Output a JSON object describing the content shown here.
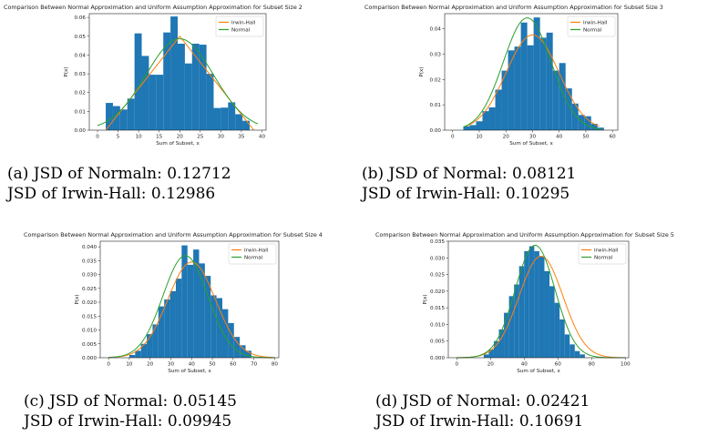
{
  "colors": {
    "bar": "#1f77b4",
    "irwin_hall": "#ff7f0e",
    "normal": "#2ca02c"
  },
  "chart_data": [
    {
      "type": "bar",
      "title": "Comparison Between Normal Approximation and Uniform Assumption Approximation for Subset Size 2",
      "xlabel": "Sum of Subset, x",
      "ylabel": "P(x)",
      "xlim": [
        -2,
        41
      ],
      "ylim": [
        0,
        0.062
      ],
      "xticks": [
        0,
        5,
        10,
        15,
        20,
        25,
        30,
        35,
        40
      ],
      "yticks": [
        0.0,
        0.01,
        0.02,
        0.03,
        0.04,
        0.05,
        0.06
      ],
      "ytick_labels": [
        "0.00",
        "0.01",
        "0.02",
        "0.03",
        "0.04",
        "0.05",
        "0.06"
      ],
      "legend": [
        "Irwin-Hall",
        "Normal"
      ],
      "legend_position": "top-right",
      "bin_start": 2,
      "bin_width": 1.75,
      "values": [
        0.0145,
        0.0128,
        0.011,
        0.0168,
        0.0515,
        0.0395,
        0.0295,
        0.0295,
        0.052,
        0.0605,
        0.046,
        0.0355,
        0.046,
        0.0455,
        0.03,
        0.0118,
        0.012,
        0.0148,
        0.0085,
        0.005
      ],
      "irwin_hall": {
        "shape": "triangle",
        "x": [
          2,
          20,
          38
        ],
        "peak": 0.05
      },
      "normal": {
        "mean": 20,
        "sd": 8.2,
        "x_range": [
          0,
          39
        ]
      },
      "caption_line1": "(a) JSD of Normaln: 0.12712",
      "caption_line2": "JSD of Irwin-Hall: 0.12986"
    },
    {
      "type": "bar",
      "title": "Comparison Between Normal Approximation and Uniform Assumption Approximation for Subset Size 3",
      "xlabel": "Sum of Subset, x",
      "ylabel": "P(x)",
      "xlim": [
        -3,
        62
      ],
      "ylim": [
        0,
        0.046
      ],
      "xticks": [
        0,
        10,
        20,
        30,
        40,
        50,
        60
      ],
      "yticks": [
        0.0,
        0.01,
        0.02,
        0.03,
        0.04
      ],
      "ytick_labels": [
        "0.00",
        "0.01",
        "0.02",
        "0.03",
        "0.04"
      ],
      "legend": [
        "Irwin-Hall",
        "Normal"
      ],
      "legend_position": "top-right",
      "bin_start": 4,
      "bin_width": 2.4,
      "values": [
        0.0015,
        0.002,
        0.0035,
        0.0075,
        0.009,
        0.016,
        0.0235,
        0.0315,
        0.033,
        0.0425,
        0.0335,
        0.0445,
        0.0365,
        0.0385,
        0.0235,
        0.0265,
        0.0165,
        0.0105,
        0.006,
        0.0055,
        0.0025,
        0.001
      ],
      "irwin_hall": {
        "mean": 30,
        "sd": 9.9,
        "peak": 0.0376,
        "x_range": [
          5,
          55
        ]
      },
      "normal": {
        "mean": 28,
        "sd": 9.0,
        "x_range": [
          4,
          56
        ]
      },
      "caption_line1": "(b) JSD of Normal: 0.08121",
      "caption_line2": "JSD of Irwin-Hall: 0.10295"
    },
    {
      "type": "bar",
      "title": "Comparison Between Normal Approximation and Uniform Assumption Approximation for Subset Size 4",
      "xlabel": "Sum of Subset, x",
      "ylabel": "P(x)",
      "xlim": [
        -4,
        82
      ],
      "ylim": [
        0,
        0.042
      ],
      "xticks": [
        0,
        10,
        20,
        30,
        40,
        50,
        60,
        70,
        80
      ],
      "yticks": [
        0.0,
        0.005,
        0.01,
        0.015,
        0.02,
        0.025,
        0.03,
        0.035,
        0.04
      ],
      "ytick_labels": [
        "0.000",
        "0.005",
        "0.010",
        "0.015",
        "0.020",
        "0.025",
        "0.030",
        "0.035",
        "0.040"
      ],
      "legend": [
        "Irwin-Hall",
        "Normal"
      ],
      "legend_position": "top-right",
      "bin_start": 10,
      "bin_width": 2.8,
      "values": [
        0.001,
        0.0025,
        0.005,
        0.0085,
        0.012,
        0.0185,
        0.021,
        0.024,
        0.0285,
        0.0405,
        0.0335,
        0.039,
        0.034,
        0.0295,
        0.0225,
        0.0215,
        0.0175,
        0.0125,
        0.0075,
        0.0045,
        0.0025
      ],
      "irwin_hall": {
        "mean": 40,
        "sd": 11.5,
        "peak": 0.0345,
        "x_range": [
          0,
          80
        ]
      },
      "normal": {
        "mean": 37,
        "sd": 10.8,
        "peak": 0.0368,
        "x_range": [
          0,
          80
        ]
      },
      "caption_line1": "(c) JSD of Normal: 0.05145",
      "caption_line2": "JSD of Irwin-Hall: 0.09945"
    },
    {
      "type": "bar",
      "title": "Comparison Between Normal Approximation and Uniform Assumption Approximation for Subset Size 5",
      "xlabel": "Sum of Subset, x",
      "ylabel": "P(x)",
      "xlim": [
        -5,
        102
      ],
      "ylim": [
        0,
        0.035
      ],
      "xticks": [
        0,
        20,
        40,
        60,
        80,
        100
      ],
      "yticks": [
        0.0,
        0.005,
        0.01,
        0.015,
        0.02,
        0.025,
        0.03,
        0.035
      ],
      "ytick_labels": [
        "0.000",
        "0.005",
        "0.010",
        "0.015",
        "0.020",
        "0.025",
        "0.030",
        "0.035"
      ],
      "legend": [
        "Irwin-Hall",
        "Normal"
      ],
      "legend_position": "top-right",
      "bin_start": 16,
      "bin_width": 3.0,
      "values": [
        0.001,
        0.0025,
        0.005,
        0.0085,
        0.0135,
        0.0185,
        0.022,
        0.0275,
        0.032,
        0.0335,
        0.032,
        0.0305,
        0.026,
        0.0215,
        0.0165,
        0.0115,
        0.007,
        0.004,
        0.002,
        0.001
      ],
      "irwin_hall": {
        "mean": 50,
        "sd": 13.0,
        "peak": 0.0305,
        "x_range": [
          0,
          100
        ]
      },
      "normal": {
        "mean": 46.5,
        "sd": 11.8,
        "peak": 0.0338,
        "x_range": [
          0,
          100
        ]
      },
      "caption_line1": "(d) JSD of Normal: 0.02421",
      "caption_line2": "JSD of Irwin-Hall: 0.10691"
    }
  ]
}
